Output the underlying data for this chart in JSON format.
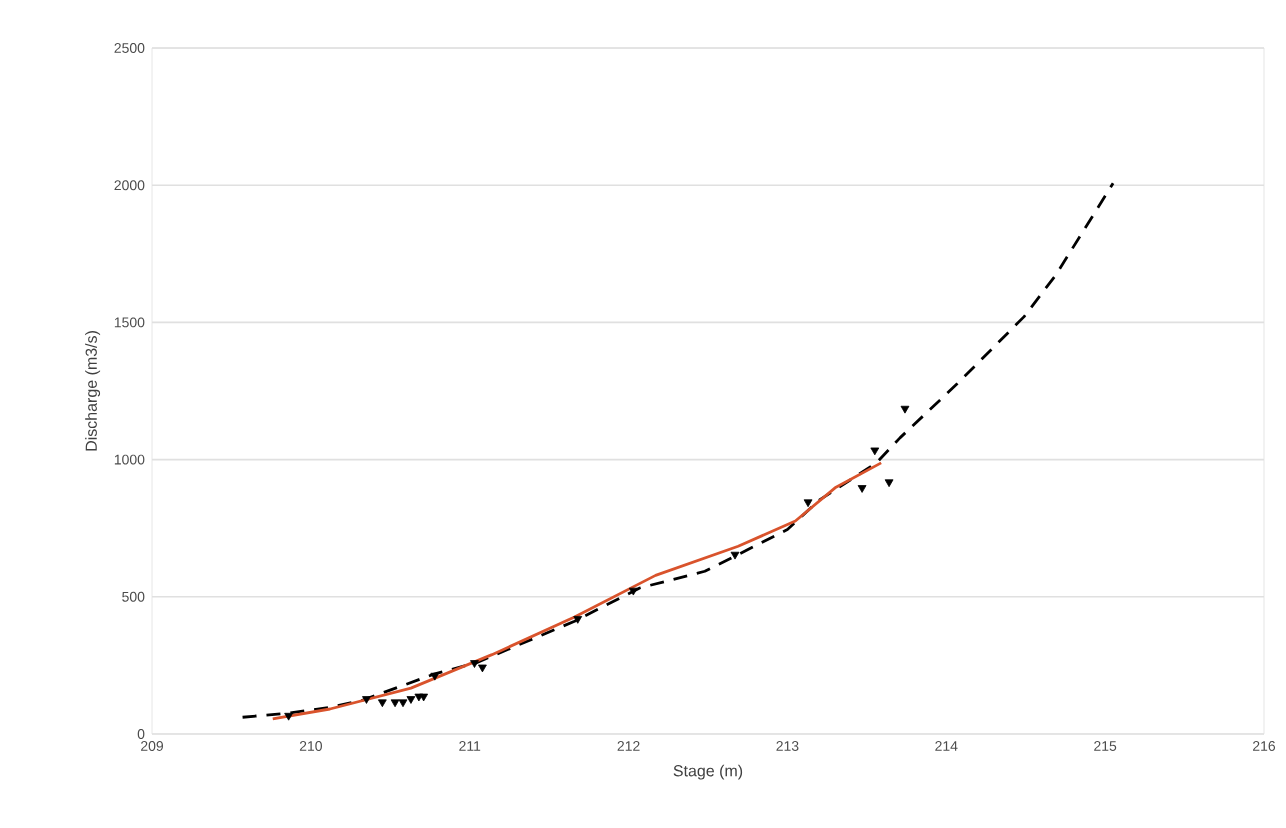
{
  "chart_data": {
    "type": "line",
    "xlabel": "Stage (m)",
    "ylabel": "Discharge (m3/s)",
    "xlim": [
      209,
      216
    ],
    "xticks": [
      209,
      210,
      211,
      212,
      213,
      214,
      215,
      216
    ],
    "ylim": [
      0,
      2500
    ],
    "yticks": [
      0,
      500,
      1000,
      1500,
      2000,
      2500
    ],
    "grid": "y",
    "series": [
      {
        "color": "#000000",
        "line_style": "dashed",
        "x": [
          209.57,
          209.86,
          210.12,
          210.32,
          210.78,
          211.04,
          211.66,
          212.07,
          212.48,
          212.69,
          213.0,
          213.2,
          213.56,
          213.71,
          214.07,
          214.49,
          214.69,
          215.05
        ],
        "values": [
          61,
          76,
          97,
          122,
          219,
          259,
          411,
          532,
          593,
          654,
          745,
          852,
          988,
          1080,
          1277,
          1521,
          1673,
          2007
        ]
      },
      {
        "color": "#d9532c",
        "line_style": "solid",
        "x": [
          209.76,
          210.12,
          210.63,
          211.14,
          211.66,
          212.17,
          212.69,
          213.05,
          213.3,
          213.59
        ],
        "values": [
          55,
          91,
          167,
          289,
          426,
          578,
          684,
          776,
          897,
          988
        ]
      },
      {
        "type": "scatter",
        "color": "#000000",
        "marker": "triangle",
        "x": [
          209.86,
          210.35,
          210.45,
          210.53,
          210.58,
          210.63,
          210.68,
          210.71,
          210.78,
          211.03,
          211.08,
          211.68,
          212.03,
          212.67,
          213.13,
          213.47,
          213.55,
          213.64,
          213.74
        ],
        "values": [
          67,
          128,
          116,
          116,
          116,
          128,
          137,
          137,
          213,
          259,
          243,
          420,
          523,
          654,
          845,
          897,
          1034,
          918,
          1186
        ]
      }
    ]
  }
}
